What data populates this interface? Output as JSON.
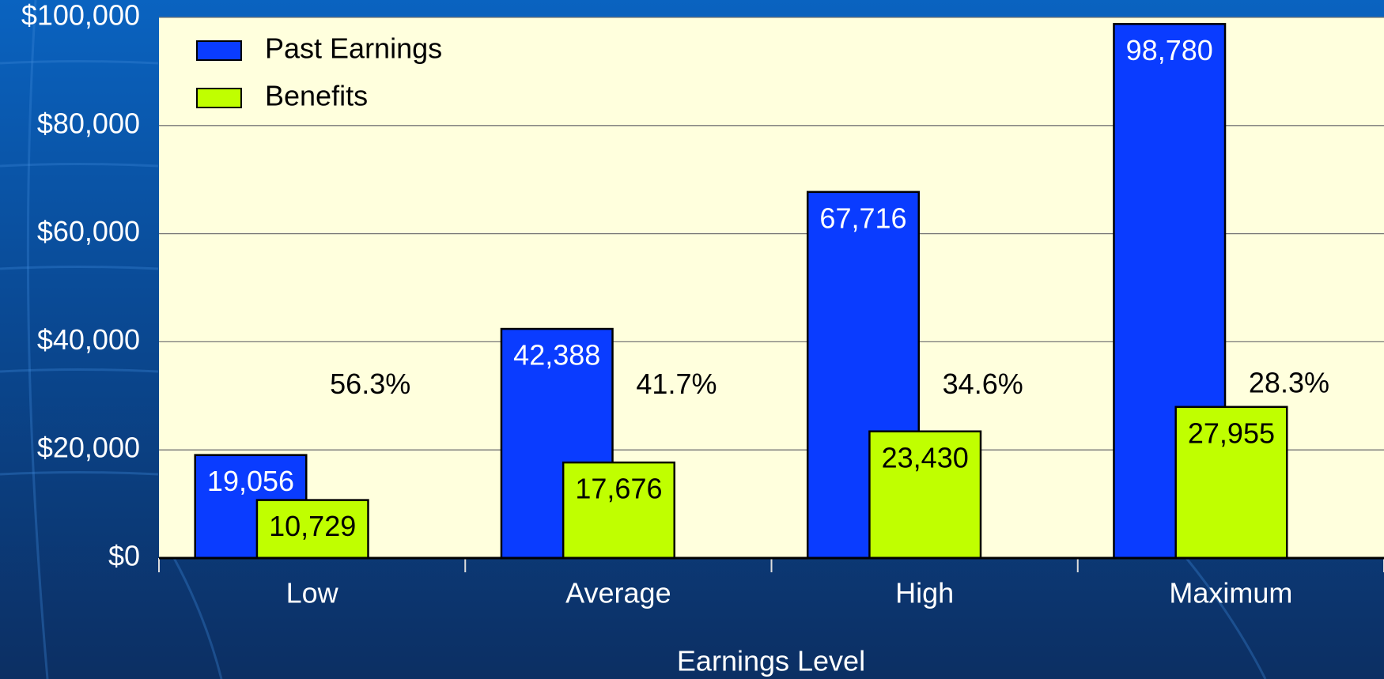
{
  "chart_data": {
    "type": "bar",
    "x_label": "Earnings Level",
    "categories": [
      "Low",
      "Average",
      "High",
      "Maximum"
    ],
    "series": [
      {
        "name": "Past Earnings",
        "color": "#0a3cff",
        "values": [
          19056,
          42388,
          67716,
          98780
        ],
        "value_labels": [
          "19,056",
          "42,388",
          "67,716",
          "98,780"
        ]
      },
      {
        "name": "Benefits",
        "color": "#c0ff00",
        "values": [
          10729,
          17676,
          23430,
          27955
        ],
        "value_labels": [
          "10,729",
          "17,676",
          "23,430",
          "27,955"
        ]
      }
    ],
    "annotations": [
      "56.3%",
      "41.7%",
      "34.6%",
      "28.3%"
    ],
    "ylim": [
      0,
      100000
    ],
    "yticks": [
      {
        "value": 0,
        "label": "$0"
      },
      {
        "value": 20000,
        "label": "$20,000"
      },
      {
        "value": 40000,
        "label": "$40,000"
      },
      {
        "value": 60000,
        "label": "$60,000"
      },
      {
        "value": 80000,
        "label": "$80,000"
      },
      {
        "value": 100000,
        "label": "$100,000"
      }
    ],
    "grid": true,
    "legend": "upper left"
  }
}
